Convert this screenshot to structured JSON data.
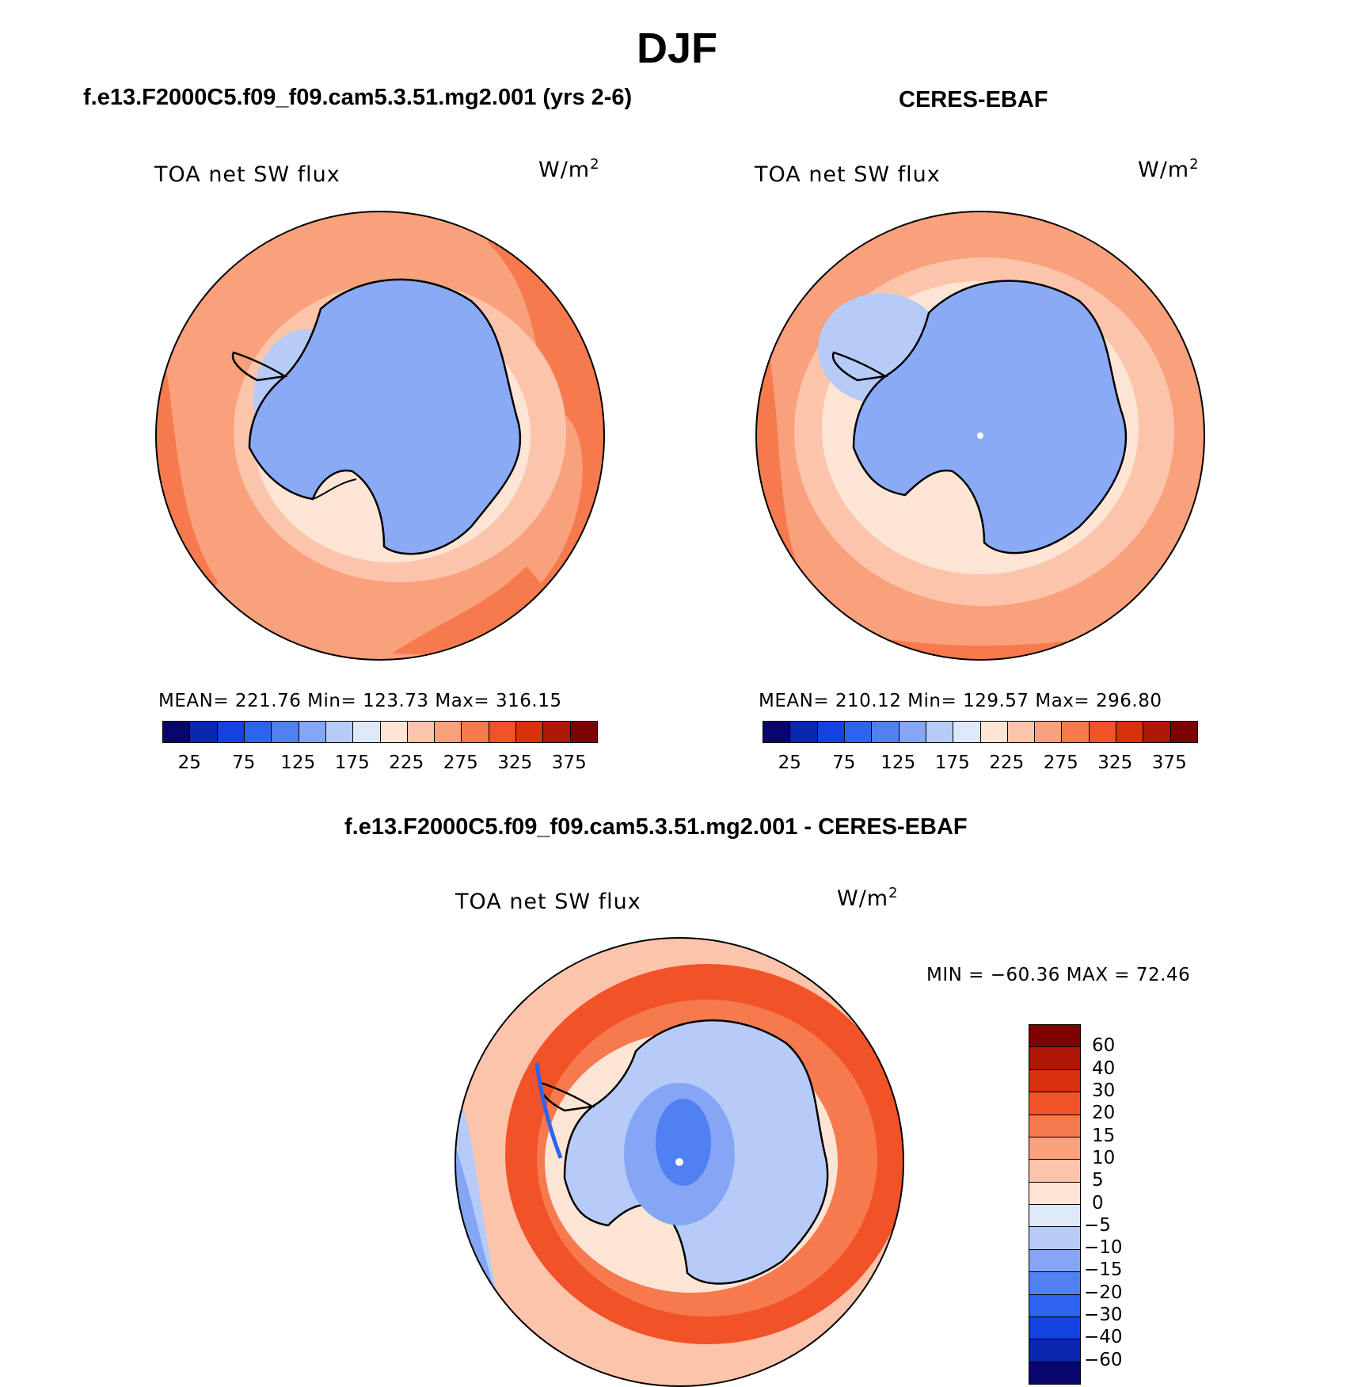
{
  "title": "DJF",
  "panels": [
    {
      "case_title": "f.e13.F2000C5.f09_f09.cam5.3.51.mg2.001 (yrs 2-6)",
      "label": "TOA net SW flux",
      "units": "W/m",
      "units_sup": "2",
      "stats": "MEAN= 221.76   Min= 123.73   Max= 316.15",
      "colorbar_ticks": [
        "25",
        "75",
        "125",
        "175",
        "225",
        "275",
        "325",
        "375"
      ]
    },
    {
      "case_title": "CERES-EBAF",
      "label": "TOA net SW flux",
      "units": "W/m",
      "units_sup": "2",
      "stats": "MEAN= 210.12   Min= 129.57   Max= 296.80",
      "colorbar_ticks": [
        "25",
        "75",
        "125",
        "175",
        "225",
        "275",
        "325",
        "375"
      ]
    }
  ],
  "diff": {
    "case_title": "f.e13.F2000C5.f09_f09.cam5.3.51.mg2.001 - CERES-EBAF",
    "label": "TOA net SW flux",
    "units": "W/m",
    "units_sup": "2",
    "stats": "MIN = −60.36 MAX =   72.46",
    "colorbar_ticks": [
      "60",
      "40",
      "30",
      "20",
      "15",
      "10",
      "5",
      "0",
      "−5",
      "−10",
      "−15",
      "−20",
      "−30",
      "−40",
      "−60"
    ]
  },
  "colors": {
    "abs_scale": [
      "#08056e",
      "#0a27b0",
      "#1442e0",
      "#2d63f0",
      "#5080f2",
      "#84a6f5",
      "#b6cbf7",
      "#dde8f8",
      "#fde5d6",
      "#fcc5ab",
      "#f9a07c",
      "#f67a4d",
      "#f25228",
      "#d9300e",
      "#ae1606",
      "#7c0302"
    ],
    "diff_scale": [
      "#7c0302",
      "#ae1606",
      "#d9300e",
      "#f25228",
      "#f67a4d",
      "#f9a07c",
      "#fcc5ab",
      "#fde5d6",
      "#dde8f8",
      "#b6cbf7",
      "#84a6f5",
      "#5080f2",
      "#2d63f0",
      "#1442e0",
      "#0a27b0",
      "#08056e"
    ],
    "land": "#8aaaf6",
    "coast": "#000000"
  }
}
